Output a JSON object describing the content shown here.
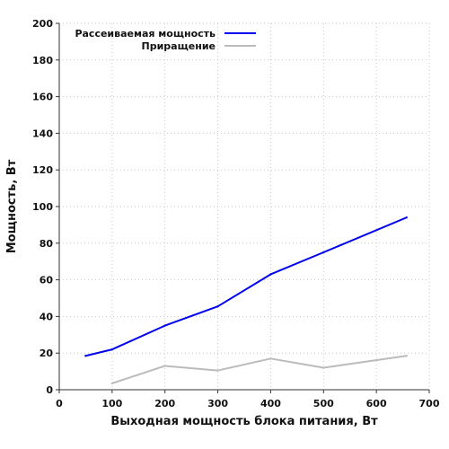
{
  "chart_data": {
    "type": "line",
    "title": "",
    "xlabel": "Выходная мощность блока питания, Вт",
    "ylabel": "Мощность, Вт",
    "xlim": [
      0,
      700
    ],
    "ylim": [
      0,
      200
    ],
    "xticks": [
      0,
      100,
      200,
      300,
      400,
      500,
      600,
      700
    ],
    "yticks": [
      0,
      20,
      40,
      60,
      80,
      100,
      120,
      140,
      160,
      180,
      200
    ],
    "grid": true,
    "legend_position": "top-left",
    "series": [
      {
        "name": "Рассеиваемая мощность",
        "color": "#0000ee",
        "points": [
          {
            "x": 50,
            "y": 18.5
          },
          {
            "x": 100,
            "y": 22
          },
          {
            "x": 200,
            "y": 35
          },
          {
            "x": 300,
            "y": 45.5
          },
          {
            "x": 400,
            "y": 63
          },
          {
            "x": 500,
            "y": 75
          },
          {
            "x": 657,
            "y": 94
          }
        ]
      },
      {
        "name": "Приращение",
        "color": "#bbbbbb",
        "points": [
          {
            "x": 100,
            "y": 3.5
          },
          {
            "x": 200,
            "y": 13
          },
          {
            "x": 300,
            "y": 10.5
          },
          {
            "x": 400,
            "y": 17
          },
          {
            "x": 500,
            "y": 12
          },
          {
            "x": 657,
            "y": 18.5
          }
        ]
      }
    ]
  }
}
